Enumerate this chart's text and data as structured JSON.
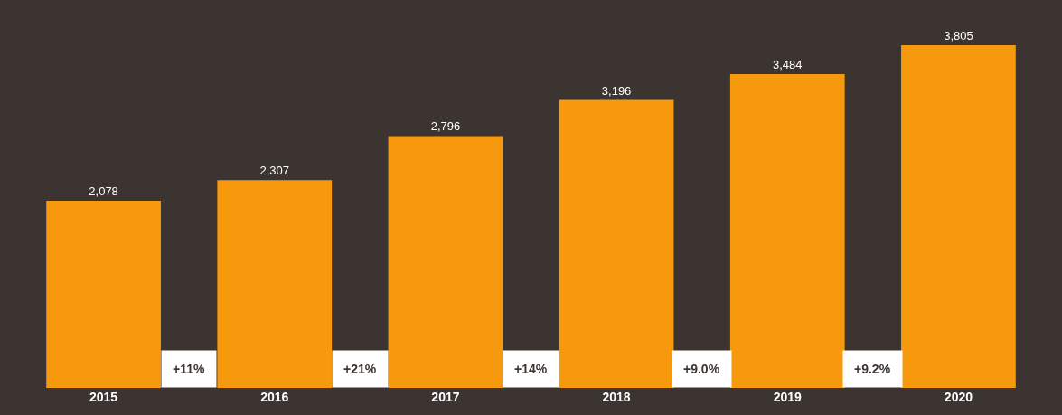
{
  "chart_data": {
    "type": "bar",
    "categories": [
      "2015",
      "2016",
      "2017",
      "2018",
      "2019",
      "2020"
    ],
    "values": [
      2078,
      2307,
      2796,
      3196,
      3484,
      3805
    ],
    "color": "#f7990c",
    "value_labels": [
      "2,078",
      "2,307",
      "2,796",
      "3,196",
      "3,484",
      "3,805"
    ],
    "annotations": [
      "+11%",
      "+21%",
      "+14%",
      "+9.0%",
      "+9.2%"
    ],
    "grid": false,
    "legend": false
  }
}
